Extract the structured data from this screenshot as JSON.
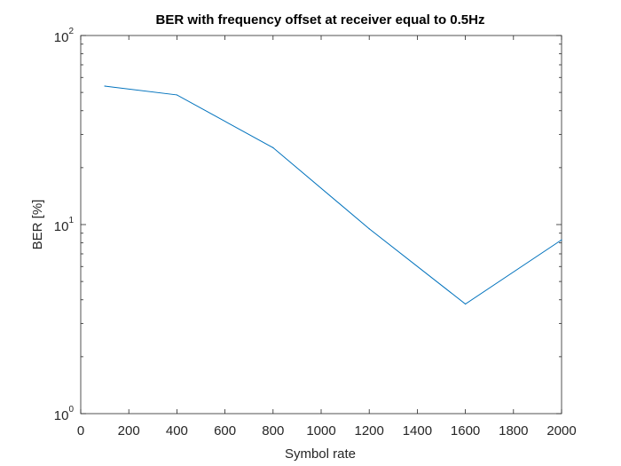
{
  "chart_data": {
    "type": "line",
    "title": "BER with frequency offset at receiver equal to 0.5Hz",
    "xlabel": "Symbol rate",
    "ylabel": "BER [%]",
    "xlim": [
      0,
      2000
    ],
    "ylim": [
      1,
      100
    ],
    "yscale": "log",
    "grid": false,
    "x_ticks": [
      0,
      200,
      400,
      600,
      800,
      1000,
      1200,
      1400,
      1600,
      1800,
      2000
    ],
    "y_ticks": [
      {
        "value": 1,
        "base": "10",
        "exp": "0"
      },
      {
        "value": 10,
        "base": "10",
        "exp": "1"
      },
      {
        "value": 100,
        "base": "10",
        "exp": "2"
      }
    ],
    "series": [
      {
        "color": "#0072BD",
        "x": [
          100,
          400,
          800,
          1200,
          1600,
          2000
        ],
        "y": [
          54,
          48.5,
          25.5,
          9.5,
          3.8,
          8.3
        ]
      }
    ]
  }
}
